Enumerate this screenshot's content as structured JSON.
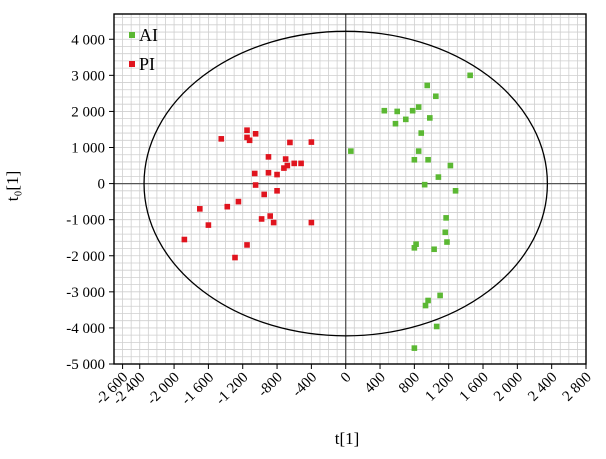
{
  "chart_data": {
    "type": "scatter",
    "title": "",
    "xlabel": "t[1]",
    "ylabel": "t₀[1]",
    "xlim": [
      -2700,
      2800
    ],
    "ylim": [
      -5000,
      4700
    ],
    "x_ticks": [
      -2600,
      -2400,
      -2000,
      -1600,
      -1200,
      -800,
      -400,
      0,
      400,
      800,
      1200,
      1600,
      2000,
      2400,
      2800
    ],
    "x_tick_labels": [
      "-2 600",
      "-2 400",
      "-2 000",
      "-1 600",
      "-1 200",
      "-800",
      "-400",
      "0",
      "400",
      "800",
      "1 200",
      "1 600",
      "2 000",
      "2 400",
      "2 800"
    ],
    "y_ticks": [
      4000,
      3000,
      2000,
      1000,
      0,
      -1000,
      -2000,
      -3000,
      -4000,
      -5000
    ],
    "y_tick_labels": [
      "4 000",
      "3 000",
      "2 000",
      "1 000",
      "0",
      "-1 000",
      "-2 000",
      "-3 000",
      "-4 000",
      "-5 000"
    ],
    "grid": true,
    "legend_position": "top-left",
    "ellipse": {
      "center": [
        0,
        0
      ],
      "rx": 2350,
      "ry": 4220
    },
    "series": [
      {
        "name": "AI",
        "color": "#5BB833",
        "points": [
          [
            1450,
            3000
          ],
          [
            950,
            2720
          ],
          [
            1050,
            2420
          ],
          [
            850,
            2120
          ],
          [
            780,
            2020
          ],
          [
            450,
            2020
          ],
          [
            600,
            2000
          ],
          [
            980,
            1820
          ],
          [
            700,
            1780
          ],
          [
            580,
            1660
          ],
          [
            880,
            1400
          ],
          [
            60,
            900
          ],
          [
            850,
            900
          ],
          [
            800,
            660
          ],
          [
            960,
            660
          ],
          [
            1220,
            500
          ],
          [
            1080,
            180
          ],
          [
            920,
            -30
          ],
          [
            1280,
            -200
          ],
          [
            1170,
            -950
          ],
          [
            1160,
            -1350
          ],
          [
            1180,
            -1620
          ],
          [
            820,
            -1680
          ],
          [
            800,
            -1780
          ],
          [
            1030,
            -1820
          ],
          [
            1100,
            -3100
          ],
          [
            960,
            -3240
          ],
          [
            930,
            -3380
          ],
          [
            1060,
            -3960
          ],
          [
            800,
            -4560
          ]
        ]
      },
      {
        "name": "PI",
        "color": "#E0141E",
        "points": [
          [
            -1150,
            1480
          ],
          [
            -1050,
            1380
          ],
          [
            -1150,
            1280
          ],
          [
            -1450,
            1240
          ],
          [
            -1120,
            1200
          ],
          [
            -650,
            1140
          ],
          [
            -400,
            1150
          ],
          [
            -900,
            740
          ],
          [
            -700,
            680
          ],
          [
            -600,
            560
          ],
          [
            -680,
            500
          ],
          [
            -520,
            560
          ],
          [
            -720,
            430
          ],
          [
            -1060,
            280
          ],
          [
            -900,
            300
          ],
          [
            -800,
            250
          ],
          [
            -1050,
            -40
          ],
          [
            -800,
            -200
          ],
          [
            -950,
            -300
          ],
          [
            -1250,
            -500
          ],
          [
            -1380,
            -640
          ],
          [
            -1700,
            -700
          ],
          [
            -880,
            -900
          ],
          [
            -980,
            -980
          ],
          [
            -400,
            -1080
          ],
          [
            -840,
            -1080
          ],
          [
            -1600,
            -1150
          ],
          [
            -1880,
            -1550
          ],
          [
            -1150,
            -1700
          ],
          [
            -1290,
            -2050
          ]
        ]
      }
    ]
  }
}
